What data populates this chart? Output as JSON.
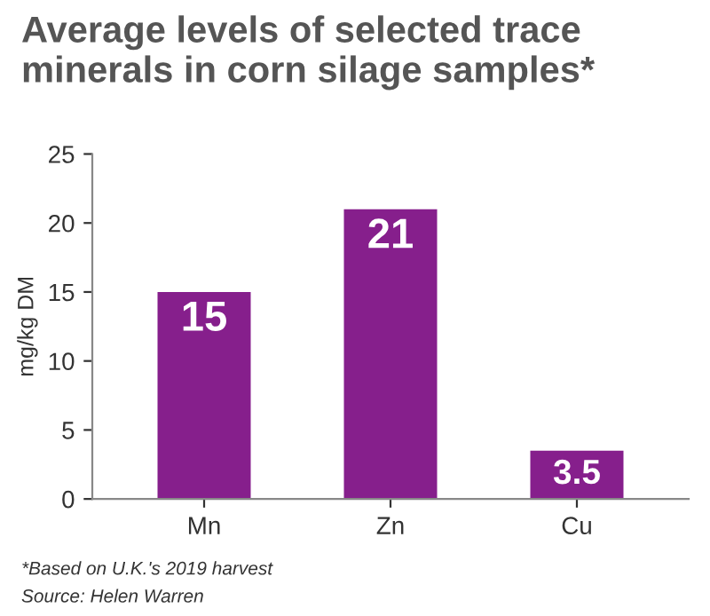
{
  "chart_data": {
    "type": "bar",
    "title": "Average levels of selected trace minerals in corn silage samples*",
    "ylabel": "mg/kg DM",
    "categories": [
      "Mn",
      "Zn",
      "Cu"
    ],
    "values": [
      15,
      21,
      3.5
    ],
    "color": "#861f8c",
    "ylim": [
      0,
      25
    ],
    "yticks": [
      0,
      5,
      10,
      15,
      20,
      25
    ],
    "grid": false,
    "data_labels": true,
    "annotations": [
      "*Based on U.K.'s 2019 harvest",
      "Source: Helen Warren"
    ]
  }
}
